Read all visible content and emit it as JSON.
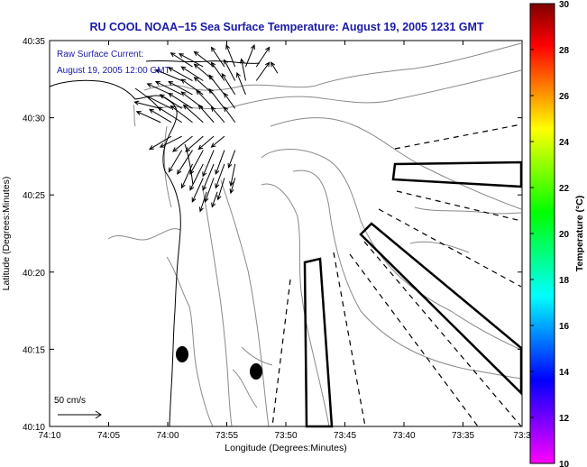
{
  "chart_data": {
    "type": "map",
    "title": "RU COOL  NOAA−15  Sea Surface Temperature:  August 19, 2005 1231 GMT",
    "xlabel": "Longitude (Degrees:Minutes)",
    "ylabel": "Latitude (Degrees:Minutes)",
    "x_tick_labels": [
      "74:10",
      "74:05",
      "74:00",
      "73:55",
      "73:50",
      "73:45",
      "73:40",
      "73:35",
      "73:3"
    ],
    "y_tick_labels": [
      "40:35",
      "40:30",
      "40:25",
      "40:20",
      "40:15",
      "40:10"
    ],
    "xlim_minutes_west": [
      70,
      30
    ],
    "ylim_minutes_north": [
      10,
      35
    ],
    "annotation_line1": "Raw Surface Current:",
    "annotation_line2": "August 19, 2005 12:00 GMT",
    "scale_label": "50 cm/s",
    "colorbar": {
      "label": "Temperature (°C)",
      "min": 10,
      "max": 30,
      "tick_labels": [
        "30",
        "28",
        "26",
        "24",
        "22",
        "20",
        "18",
        "16",
        "14",
        "12",
        "10"
      ],
      "colors": [
        "#ff00ff",
        "#7f00ff",
        "#0000ff",
        "#007fff",
        "#00ffff",
        "#00ff7f",
        "#00ff00",
        "#7fff00",
        "#ffff00",
        "#ff7f00",
        "#ff0000",
        "#7f0000"
      ]
    },
    "current_vectors": [
      [
        -73.965,
        40.555,
        -0.5,
        0.32
      ],
      [
        -73.95,
        40.555,
        -0.55,
        0.3
      ],
      [
        -73.935,
        40.555,
        -0.45,
        0.35
      ],
      [
        -73.92,
        40.555,
        -0.3,
        0.45
      ],
      [
        -73.905,
        40.555,
        -0.2,
        0.5
      ],
      [
        -73.89,
        40.555,
        0.2,
        0.5
      ],
      [
        -73.875,
        40.555,
        0.3,
        0.45
      ],
      [
        -73.845,
        40.548,
        -0.15,
        0.25
      ],
      [
        -73.98,
        40.54,
        -0.6,
        0.25
      ],
      [
        -73.965,
        40.54,
        -0.55,
        0.3
      ],
      [
        -73.95,
        40.54,
        -0.5,
        0.32
      ],
      [
        -73.935,
        40.54,
        -0.45,
        0.38
      ],
      [
        -73.92,
        40.54,
        -0.3,
        0.42
      ],
      [
        -73.905,
        40.54,
        -0.25,
        0.48
      ],
      [
        -73.89,
        40.54,
        -0.1,
        0.5
      ],
      [
        -73.875,
        40.54,
        0.3,
        0.42
      ],
      [
        -73.995,
        40.525,
        -0.55,
        0.25
      ],
      [
        -73.98,
        40.525,
        -0.6,
        0.3
      ],
      [
        -73.965,
        40.525,
        -0.55,
        0.3
      ],
      [
        -73.95,
        40.525,
        -0.5,
        0.35
      ],
      [
        -73.935,
        40.525,
        -0.45,
        0.4
      ],
      [
        -73.92,
        40.525,
        -0.35,
        0.45
      ],
      [
        -73.905,
        40.525,
        -0.3,
        0.48
      ],
      [
        -73.89,
        40.525,
        -0.2,
        0.5
      ],
      [
        -74.01,
        40.51,
        -0.6,
        0.15
      ],
      [
        -73.995,
        40.51,
        -0.55,
        0.28
      ],
      [
        -73.98,
        40.51,
        -0.5,
        0.32
      ],
      [
        -73.965,
        40.51,
        -0.55,
        0.35
      ],
      [
        -73.95,
        40.51,
        -0.5,
        0.38
      ],
      [
        -73.935,
        40.51,
        -0.4,
        0.42
      ],
      [
        -73.92,
        40.51,
        -0.35,
        0.45
      ],
      [
        -73.905,
        40.51,
        -0.25,
        0.35
      ],
      [
        -74.01,
        40.495,
        -0.55,
        0.25
      ],
      [
        -73.995,
        40.495,
        -0.5,
        0.3
      ],
      [
        -73.98,
        40.495,
        -0.55,
        0.35
      ],
      [
        -73.965,
        40.495,
        -0.5,
        0.38
      ],
      [
        -73.95,
        40.495,
        -0.45,
        0.4
      ],
      [
        -73.935,
        40.495,
        -0.35,
        0.4
      ],
      [
        -73.92,
        40.495,
        -0.3,
        0.35
      ],
      [
        -73.905,
        40.495,
        -0.25,
        0.35
      ],
      [
        -73.995,
        40.48,
        -0.5,
        -0.3
      ],
      [
        -73.98,
        40.48,
        -0.5,
        -0.25
      ],
      [
        -73.965,
        40.48,
        -0.45,
        -0.35
      ],
      [
        -73.95,
        40.48,
        -0.4,
        -0.35
      ],
      [
        -73.935,
        40.48,
        -0.35,
        -0.3
      ],
      [
        -73.92,
        40.48,
        -0.3,
        -0.25
      ],
      [
        -73.98,
        40.465,
        -0.3,
        -0.5
      ],
      [
        -73.965,
        40.465,
        -0.35,
        -0.55
      ],
      [
        -73.95,
        40.465,
        -0.3,
        -0.55
      ],
      [
        -73.935,
        40.465,
        -0.25,
        -0.6
      ],
      [
        -73.92,
        40.465,
        -0.2,
        -0.55
      ],
      [
        -73.905,
        40.465,
        -0.15,
        -0.4
      ],
      [
        -73.965,
        40.45,
        -0.25,
        -0.55
      ],
      [
        -73.95,
        40.45,
        -0.3,
        -0.6
      ],
      [
        -73.935,
        40.45,
        -0.25,
        -0.6
      ],
      [
        -73.92,
        40.45,
        -0.2,
        -0.55
      ],
      [
        -73.905,
        40.45,
        -0.1,
        -0.5
      ],
      [
        -73.95,
        40.435,
        -0.25,
        -0.55
      ],
      [
        -73.935,
        40.435,
        -0.2,
        -0.55
      ],
      [
        -73.92,
        40.435,
        -0.15,
        -0.5
      ],
      [
        -73.905,
        40.435,
        -0.1,
        -0.35
      ],
      [
        -73.945,
        40.42,
        -0.15,
        -0.45
      ],
      [
        -73.93,
        40.42,
        -0.12,
        -0.35
      ]
    ]
  }
}
